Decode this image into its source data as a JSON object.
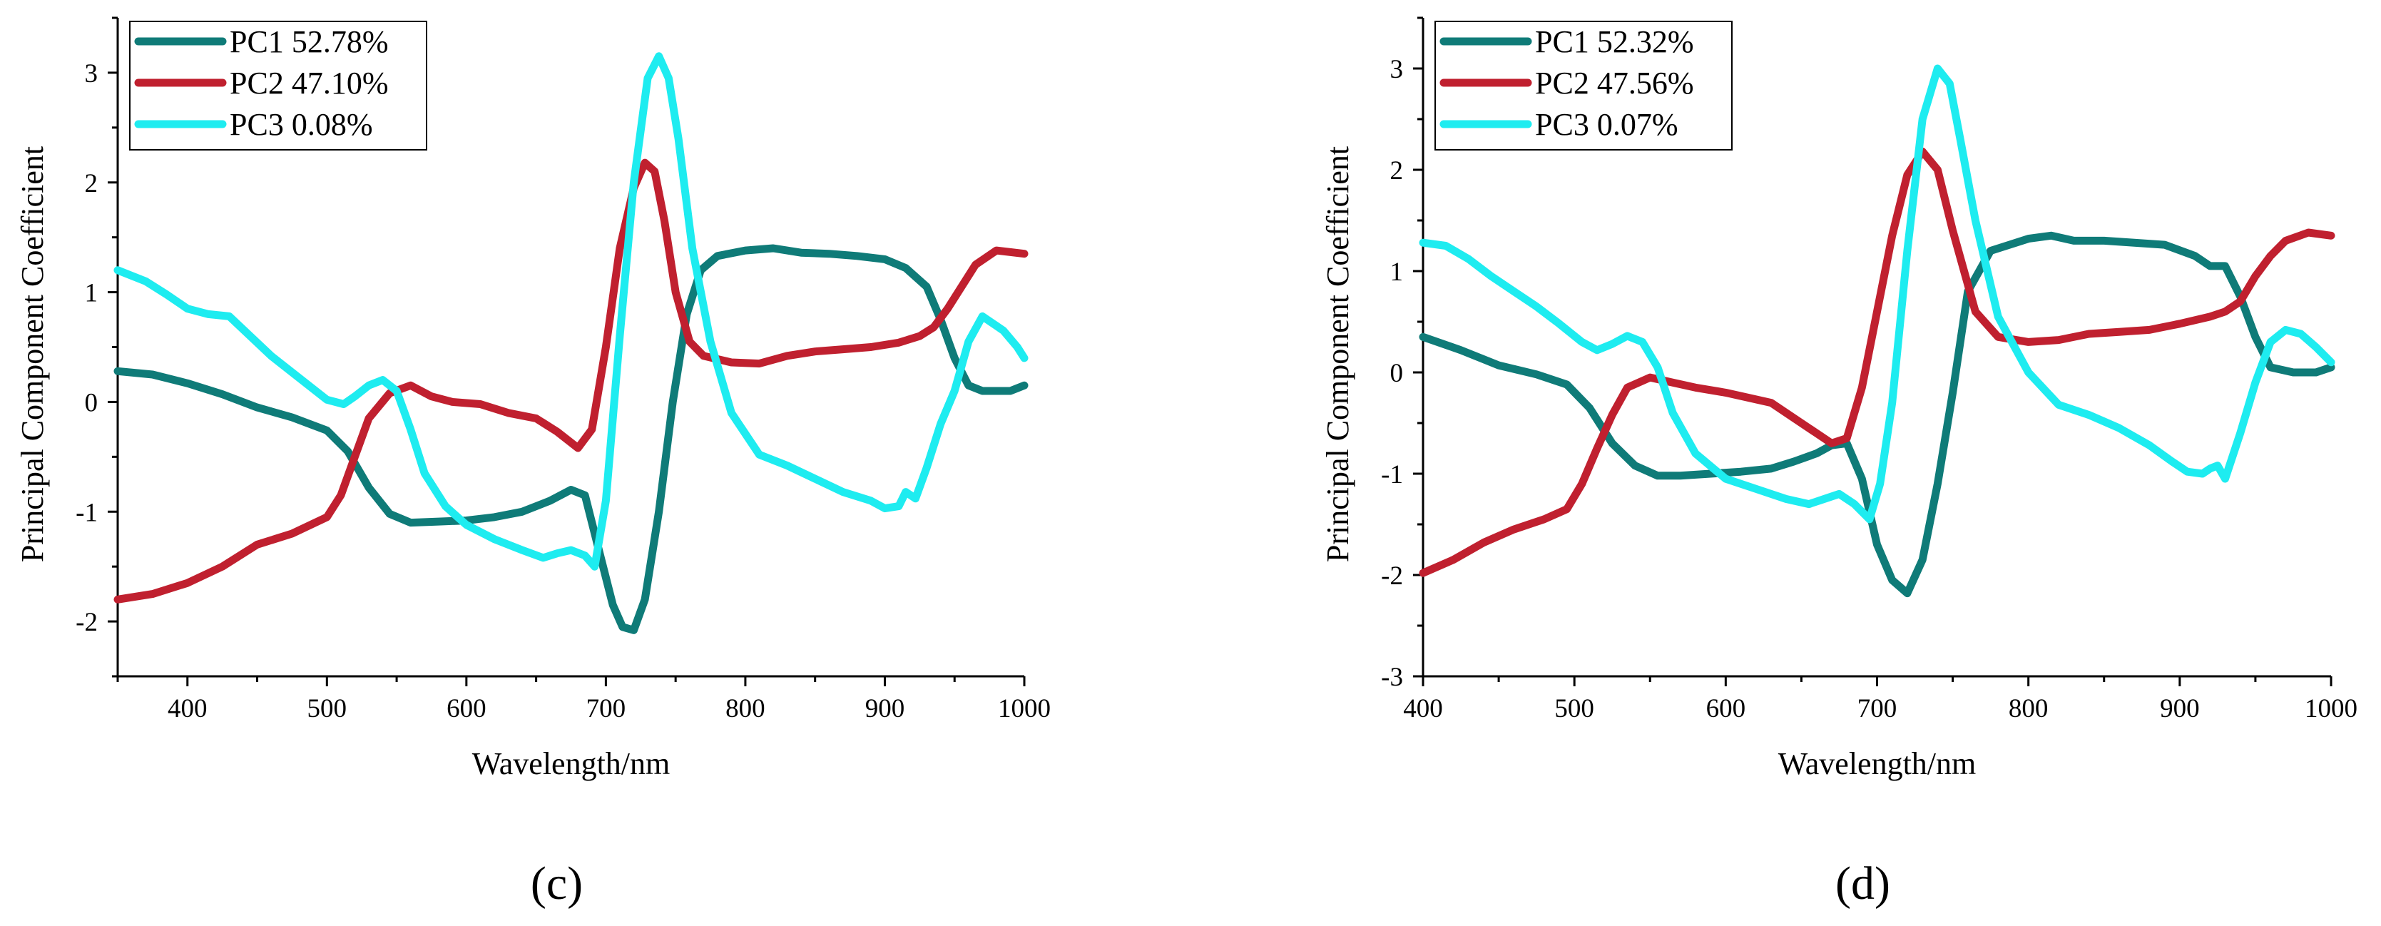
{
  "chart_data": [
    {
      "type": "line",
      "panel_label": "(c)",
      "xlabel": "Wavelength/nm",
      "ylabel": "Principal Component Coefficient",
      "xlim": [
        350,
        1000
      ],
      "ylim": [
        -2.5,
        3.5
      ],
      "xticks": [
        400,
        500,
        600,
        700,
        800,
        900,
        1000
      ],
      "yticks": [
        -2,
        -1,
        0,
        1,
        2,
        3
      ],
      "grid": false,
      "legend_position": "top-left",
      "series": [
        {
          "name": "PC1 52.78%",
          "color": "#0f7b78",
          "x": [
            350,
            375,
            400,
            425,
            450,
            475,
            500,
            515,
            530,
            545,
            560,
            580,
            600,
            620,
            640,
            660,
            675,
            685,
            695,
            705,
            712,
            720,
            728,
            738,
            748,
            758,
            768,
            780,
            800,
            820,
            840,
            860,
            880,
            900,
            915,
            930,
            940,
            950,
            960,
            970,
            980,
            990,
            1000
          ],
          "y": [
            0.28,
            0.25,
            0.17,
            0.07,
            -0.05,
            -0.14,
            -0.26,
            -0.45,
            -0.78,
            -1.02,
            -1.1,
            -1.09,
            -1.08,
            -1.05,
            -1.0,
            -0.9,
            -0.8,
            -0.85,
            -1.35,
            -1.85,
            -2.05,
            -2.08,
            -1.8,
            -1.0,
            0.0,
            0.8,
            1.2,
            1.33,
            1.38,
            1.4,
            1.36,
            1.35,
            1.33,
            1.3,
            1.22,
            1.05,
            0.75,
            0.4,
            0.15,
            0.1,
            0.1,
            0.1,
            0.15
          ]
        },
        {
          "name": "PC2 47.10%",
          "color": "#c0202f",
          "x": [
            350,
            375,
            400,
            425,
            450,
            475,
            500,
            510,
            520,
            530,
            545,
            560,
            575,
            590,
            610,
            630,
            650,
            665,
            680,
            690,
            700,
            710,
            720,
            728,
            735,
            742,
            750,
            760,
            770,
            790,
            810,
            830,
            850,
            870,
            890,
            910,
            925,
            935,
            945,
            955,
            965,
            980,
            1000
          ],
          "y": [
            -1.8,
            -1.75,
            -1.65,
            -1.5,
            -1.3,
            -1.2,
            -1.05,
            -0.85,
            -0.5,
            -0.15,
            0.08,
            0.15,
            0.05,
            0.0,
            -0.02,
            -0.1,
            -0.15,
            -0.27,
            -0.42,
            -0.25,
            0.5,
            1.4,
            1.95,
            2.18,
            2.1,
            1.65,
            1.0,
            0.55,
            0.42,
            0.36,
            0.35,
            0.42,
            0.46,
            0.48,
            0.5,
            0.54,
            0.6,
            0.68,
            0.85,
            1.05,
            1.25,
            1.38,
            1.35
          ]
        },
        {
          "name": "PC3 0.08%",
          "color": "#1eecf0",
          "x": [
            350,
            370,
            385,
            400,
            415,
            430,
            445,
            460,
            480,
            500,
            512,
            520,
            530,
            540,
            550,
            560,
            570,
            585,
            600,
            620,
            640,
            655,
            665,
            675,
            685,
            692,
            700,
            710,
            720,
            730,
            738,
            745,
            752,
            762,
            775,
            790,
            810,
            830,
            850,
            870,
            890,
            900,
            910,
            915,
            922,
            930,
            940,
            950,
            960,
            970,
            985,
            995,
            1000
          ],
          "y": [
            1.2,
            1.1,
            0.98,
            0.85,
            0.8,
            0.78,
            0.6,
            0.42,
            0.22,
            0.02,
            -0.02,
            0.05,
            0.15,
            0.2,
            0.1,
            -0.25,
            -0.65,
            -0.95,
            -1.12,
            -1.25,
            -1.35,
            -1.42,
            -1.38,
            -1.35,
            -1.4,
            -1.5,
            -0.9,
            0.6,
            2.0,
            2.95,
            3.15,
            2.95,
            2.4,
            1.4,
            0.55,
            -0.1,
            -0.48,
            -0.58,
            -0.7,
            -0.82,
            -0.9,
            -0.97,
            -0.95,
            -0.82,
            -0.88,
            -0.6,
            -0.2,
            0.1,
            0.55,
            0.78,
            0.65,
            0.5,
            0.4
          ]
        }
      ]
    },
    {
      "type": "line",
      "panel_label": "(d)",
      "xlabel": "Wavelength/nm",
      "ylabel": "Principal Component Coefficient",
      "xlim": [
        400,
        1000
      ],
      "ylim": [
        -3,
        3.5
      ],
      "xticks": [
        400,
        500,
        600,
        700,
        800,
        900,
        1000
      ],
      "yticks": [
        -3,
        -2,
        -1,
        0,
        1,
        2,
        3
      ],
      "grid": false,
      "legend_position": "top-left",
      "series": [
        {
          "name": "PC1 52.32%",
          "color": "#0f7b78",
          "x": [
            400,
            425,
            450,
            475,
            495,
            510,
            525,
            540,
            555,
            570,
            590,
            610,
            630,
            645,
            660,
            670,
            680,
            690,
            700,
            710,
            720,
            730,
            740,
            750,
            760,
            775,
            800,
            815,
            830,
            850,
            870,
            890,
            910,
            920,
            930,
            940,
            950,
            960,
            975,
            990,
            1000
          ],
          "y": [
            0.35,
            0.22,
            0.07,
            -0.02,
            -0.12,
            -0.35,
            -0.7,
            -0.92,
            -1.02,
            -1.02,
            -1.0,
            -0.98,
            -0.95,
            -0.88,
            -0.8,
            -0.72,
            -0.7,
            -1.05,
            -1.7,
            -2.05,
            -2.18,
            -1.85,
            -1.1,
            -0.2,
            0.8,
            1.2,
            1.32,
            1.35,
            1.3,
            1.3,
            1.28,
            1.26,
            1.15,
            1.05,
            1.05,
            0.75,
            0.35,
            0.05,
            0.0,
            0.0,
            0.05
          ]
        },
        {
          "name": "PC2 47.56%",
          "color": "#c0202f",
          "x": [
            400,
            420,
            440,
            460,
            480,
            495,
            505,
            515,
            525,
            535,
            550,
            565,
            580,
            600,
            615,
            630,
            645,
            660,
            670,
            680,
            690,
            700,
            710,
            720,
            730,
            740,
            750,
            765,
            780,
            800,
            820,
            840,
            860,
            880,
            900,
            920,
            930,
            940,
            950,
            960,
            970,
            985,
            1000
          ],
          "y": [
            -1.98,
            -1.85,
            -1.68,
            -1.55,
            -1.45,
            -1.35,
            -1.1,
            -0.75,
            -0.42,
            -0.15,
            -0.05,
            -0.1,
            -0.15,
            -0.2,
            -0.25,
            -0.3,
            -0.45,
            -0.6,
            -0.7,
            -0.65,
            -0.15,
            0.6,
            1.35,
            1.95,
            2.18,
            2.0,
            1.4,
            0.6,
            0.35,
            0.3,
            0.32,
            0.38,
            0.4,
            0.42,
            0.48,
            0.55,
            0.6,
            0.7,
            0.95,
            1.15,
            1.3,
            1.38,
            1.35
          ]
        },
        {
          "name": "PC3 0.07%",
          "color": "#1eecf0",
          "x": [
            400,
            415,
            430,
            445,
            460,
            475,
            490,
            505,
            515,
            525,
            535,
            545,
            555,
            565,
            580,
            600,
            620,
            640,
            655,
            665,
            675,
            685,
            695,
            702,
            710,
            720,
            730,
            740,
            748,
            755,
            765,
            780,
            800,
            820,
            840,
            860,
            880,
            895,
            905,
            915,
            920,
            925,
            930,
            940,
            950,
            960,
            970,
            980,
            990,
            1000
          ],
          "y": [
            1.28,
            1.25,
            1.12,
            0.95,
            0.8,
            0.65,
            0.48,
            0.3,
            0.22,
            0.28,
            0.36,
            0.3,
            0.05,
            -0.4,
            -0.8,
            -1.05,
            -1.15,
            -1.25,
            -1.3,
            -1.25,
            -1.2,
            -1.3,
            -1.45,
            -1.1,
            -0.3,
            1.2,
            2.5,
            3.0,
            2.85,
            2.3,
            1.5,
            0.55,
            0.0,
            -0.32,
            -0.42,
            -0.55,
            -0.72,
            -0.88,
            -0.98,
            -1.0,
            -0.95,
            -0.92,
            -1.05,
            -0.6,
            -0.1,
            0.3,
            0.42,
            0.38,
            0.25,
            0.1
          ]
        }
      ]
    }
  ]
}
